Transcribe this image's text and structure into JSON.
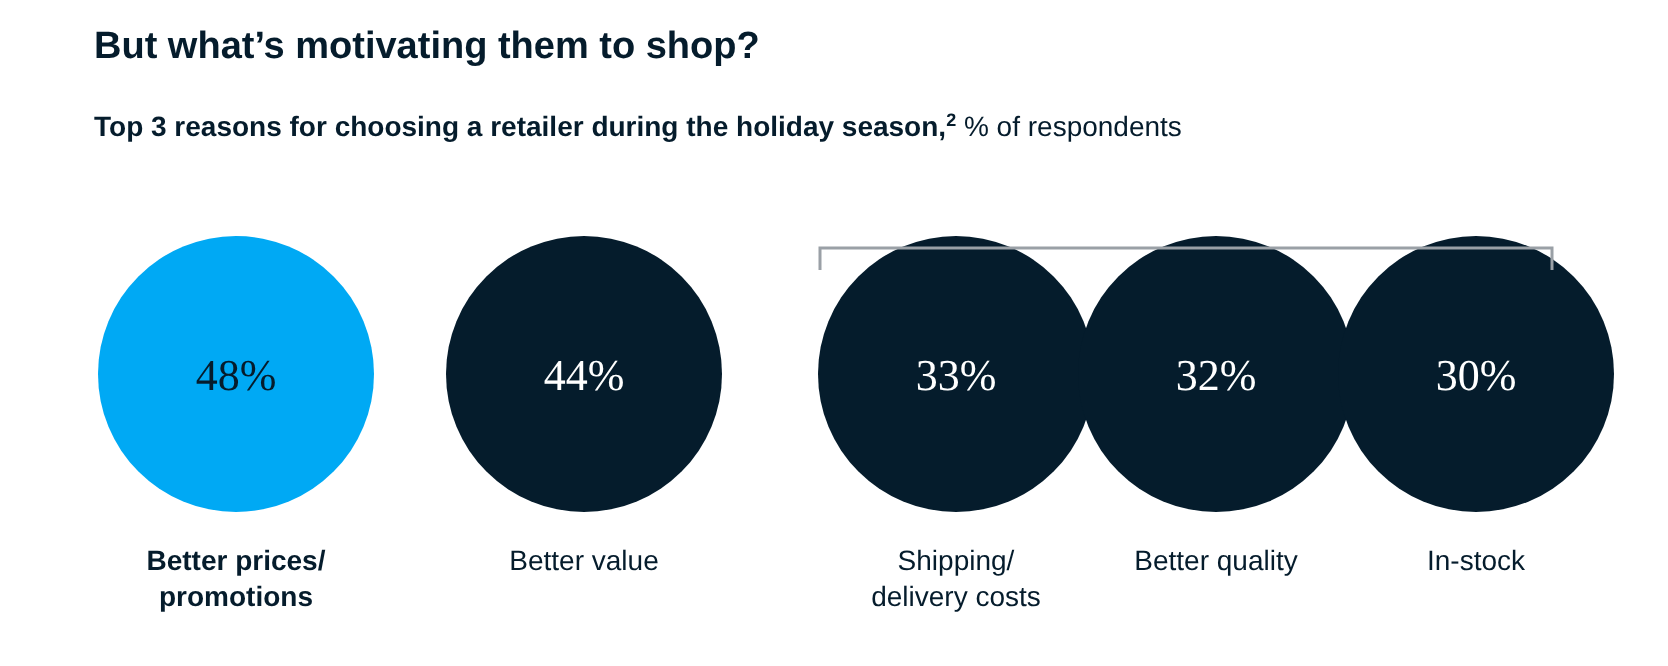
{
  "chart_data": {
    "type": "other",
    "title": "But what’s motivating them to shop?",
    "subtitle": "Top 3 reasons for choosing a retailer during the holiday season,$^{2}$ % of respondents",
    "categories": [
      "Better prices/ promotions",
      "Better value",
      "Shipping/ delivery costs",
      "Better quality",
      "In-stock"
    ],
    "colors": [
      "#00a9f4",
      "#051c2c",
      "#051c2c",
      "#051c2c",
      "#051c2c"
    ],
    "values": [
      48,
      44,
      33,
      32,
      30
    ],
    "value_labels": [
      "48%",
      "44%",
      "33%",
      "32%",
      "30%"
    ]
  }
}
